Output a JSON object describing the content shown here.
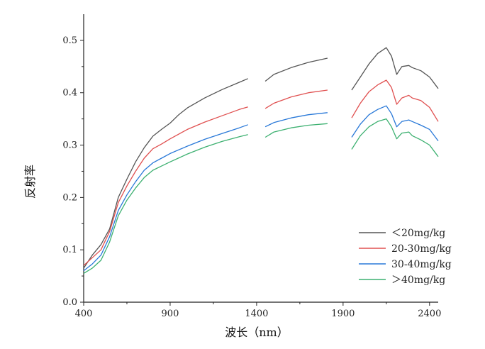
{
  "chart_data": {
    "type": "line",
    "title": "",
    "xlabel": "波长（nm）",
    "ylabel": "反射率",
    "xlim": [
      400,
      2450
    ],
    "ylim": [
      0,
      0.55
    ],
    "xticks": [
      400,
      900,
      1400,
      1900,
      2400
    ],
    "xtick_labels": [
      "400",
      "900",
      "1400",
      "1900",
      "2400"
    ],
    "yticks": [
      0,
      0.1,
      0.2,
      0.3,
      0.4,
      0.5
    ],
    "ytick_labels": [
      "0.0",
      "0.1",
      "0.2",
      "0.3",
      "0.4",
      "0.5"
    ],
    "grid": false,
    "legend_position": "bottom-right",
    "series": [
      {
        "name": "＜20mg/kg",
        "color": "#555555",
        "segments": [
          [
            [
              400,
              0.065
            ],
            [
              450,
              0.09
            ],
            [
              500,
              0.11
            ],
            [
              550,
              0.14
            ],
            [
              600,
              0.2
            ],
            [
              650,
              0.235
            ],
            [
              700,
              0.268
            ],
            [
              750,
              0.295
            ],
            [
              800,
              0.317
            ],
            [
              850,
              0.33
            ],
            [
              900,
              0.342
            ],
            [
              950,
              0.358
            ],
            [
              1000,
              0.371
            ],
            [
              1100,
              0.39
            ],
            [
              1200,
              0.406
            ],
            [
              1300,
              0.42
            ],
            [
              1350,
              0.427
            ]
          ],
          [
            [
              1450,
              0.422
            ],
            [
              1500,
              0.435
            ],
            [
              1600,
              0.448
            ],
            [
              1700,
              0.458
            ],
            [
              1810,
              0.466
            ]
          ],
          [
            [
              1950,
              0.405
            ],
            [
              2000,
              0.43
            ],
            [
              2050,
              0.455
            ],
            [
              2100,
              0.475
            ],
            [
              2150,
              0.486
            ],
            [
              2180,
              0.47
            ],
            [
              2210,
              0.435
            ],
            [
              2240,
              0.45
            ],
            [
              2280,
              0.452
            ],
            [
              2300,
              0.448
            ],
            [
              2350,
              0.442
            ],
            [
              2400,
              0.43
            ],
            [
              2450,
              0.408
            ]
          ]
        ]
      },
      {
        "name": "20-30mg/kg",
        "color": "#e05050",
        "segments": [
          [
            [
              400,
              0.07
            ],
            [
              450,
              0.085
            ],
            [
              500,
              0.1
            ],
            [
              550,
              0.135
            ],
            [
              600,
              0.19
            ],
            [
              650,
              0.222
            ],
            [
              700,
              0.25
            ],
            [
              750,
              0.275
            ],
            [
              800,
              0.293
            ],
            [
              850,
              0.302
            ],
            [
              900,
              0.312
            ],
            [
              1000,
              0.33
            ],
            [
              1100,
              0.344
            ],
            [
              1200,
              0.356
            ],
            [
              1300,
              0.368
            ],
            [
              1350,
              0.373
            ]
          ],
          [
            [
              1450,
              0.37
            ],
            [
              1500,
              0.38
            ],
            [
              1600,
              0.392
            ],
            [
              1700,
              0.4
            ],
            [
              1810,
              0.405
            ]
          ],
          [
            [
              1950,
              0.352
            ],
            [
              2000,
              0.38
            ],
            [
              2050,
              0.402
            ],
            [
              2100,
              0.415
            ],
            [
              2150,
              0.424
            ],
            [
              2180,
              0.41
            ],
            [
              2210,
              0.378
            ],
            [
              2240,
              0.39
            ],
            [
              2280,
              0.395
            ],
            [
              2300,
              0.39
            ],
            [
              2350,
              0.385
            ],
            [
              2400,
              0.372
            ],
            [
              2450,
              0.345
            ]
          ]
        ]
      },
      {
        "name": "30-40mg/kg",
        "color": "#2878d8",
        "segments": [
          [
            [
              400,
              0.06
            ],
            [
              450,
              0.073
            ],
            [
              500,
              0.09
            ],
            [
              550,
              0.125
            ],
            [
              600,
              0.175
            ],
            [
              650,
              0.205
            ],
            [
              700,
              0.23
            ],
            [
              750,
              0.252
            ],
            [
              800,
              0.266
            ],
            [
              850,
              0.275
            ],
            [
              900,
              0.284
            ],
            [
              1000,
              0.298
            ],
            [
              1100,
              0.311
            ],
            [
              1200,
              0.322
            ],
            [
              1300,
              0.333
            ],
            [
              1350,
              0.339
            ]
          ],
          [
            [
              1450,
              0.335
            ],
            [
              1500,
              0.343
            ],
            [
              1600,
              0.352
            ],
            [
              1700,
              0.358
            ],
            [
              1810,
              0.362
            ]
          ],
          [
            [
              1950,
              0.315
            ],
            [
              2000,
              0.34
            ],
            [
              2050,
              0.358
            ],
            [
              2100,
              0.368
            ],
            [
              2150,
              0.375
            ],
            [
              2180,
              0.36
            ],
            [
              2210,
              0.335
            ],
            [
              2240,
              0.345
            ],
            [
              2280,
              0.348
            ],
            [
              2300,
              0.345
            ],
            [
              2350,
              0.338
            ],
            [
              2400,
              0.33
            ],
            [
              2450,
              0.308
            ]
          ]
        ]
      },
      {
        "name": "＞40mg/kg",
        "color": "#3cb070",
        "segments": [
          [
            [
              400,
              0.055
            ],
            [
              450,
              0.065
            ],
            [
              500,
              0.08
            ],
            [
              550,
              0.115
            ],
            [
              600,
              0.165
            ],
            [
              650,
              0.195
            ],
            [
              700,
              0.218
            ],
            [
              750,
              0.238
            ],
            [
              800,
              0.252
            ],
            [
              850,
              0.26
            ],
            [
              900,
              0.268
            ],
            [
              1000,
              0.283
            ],
            [
              1100,
              0.296
            ],
            [
              1200,
              0.307
            ],
            [
              1300,
              0.316
            ],
            [
              1350,
              0.32
            ]
          ],
          [
            [
              1450,
              0.315
            ],
            [
              1500,
              0.325
            ],
            [
              1600,
              0.333
            ],
            [
              1700,
              0.338
            ],
            [
              1810,
              0.341
            ]
          ],
          [
            [
              1950,
              0.292
            ],
            [
              2000,
              0.318
            ],
            [
              2050,
              0.335
            ],
            [
              2100,
              0.345
            ],
            [
              2150,
              0.35
            ],
            [
              2180,
              0.335
            ],
            [
              2210,
              0.312
            ],
            [
              2240,
              0.323
            ],
            [
              2280,
              0.325
            ],
            [
              2300,
              0.318
            ],
            [
              2350,
              0.31
            ],
            [
              2400,
              0.3
            ],
            [
              2450,
              0.278
            ]
          ]
        ]
      }
    ]
  }
}
